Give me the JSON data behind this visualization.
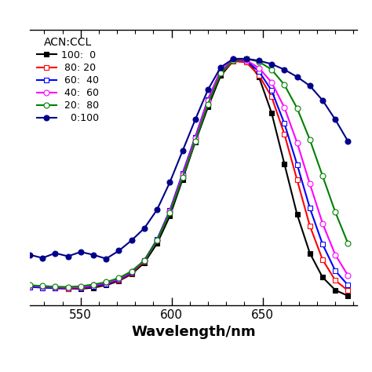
{
  "xlabel": "Wavelength/nm",
  "legend_title": "ACN:CCL",
  "legend_entries": [
    "100:  0",
    " 80: 20",
    " 60:  40",
    " 40:  60",
    " 20:  80",
    "   0:100"
  ],
  "colors": [
    "#000000",
    "#ff0000",
    "#0000ff",
    "#ff00ff",
    "#008000",
    "#00008b"
  ],
  "xlim": [
    522,
    702
  ],
  "ylim": [
    -0.02,
    1.12
  ],
  "x_ticks": [
    550,
    600,
    650
  ],
  "series": {
    "black_100_0": {
      "x": [
        522,
        529,
        536,
        543,
        550,
        557,
        564,
        571,
        578,
        585,
        592,
        599,
        606,
        613,
        620,
        627,
        634,
        641,
        648,
        655,
        662,
        669,
        676,
        683,
        690,
        697
      ],
      "y": [
        0.058,
        0.055,
        0.05,
        0.048,
        0.047,
        0.052,
        0.062,
        0.08,
        0.108,
        0.155,
        0.235,
        0.348,
        0.5,
        0.655,
        0.8,
        0.93,
        0.992,
        1.0,
        0.925,
        0.775,
        0.565,
        0.355,
        0.195,
        0.095,
        0.042,
        0.018
      ],
      "marker": "s",
      "filled": true
    },
    "red_80_20": {
      "x": [
        522,
        529,
        536,
        543,
        550,
        557,
        564,
        571,
        578,
        585,
        592,
        599,
        606,
        613,
        620,
        627,
        634,
        641,
        648,
        655,
        662,
        669,
        676,
        683,
        690,
        697
      ],
      "y": [
        0.058,
        0.054,
        0.05,
        0.048,
        0.05,
        0.056,
        0.066,
        0.083,
        0.112,
        0.162,
        0.248,
        0.368,
        0.518,
        0.668,
        0.818,
        0.94,
        0.99,
        0.985,
        0.932,
        0.842,
        0.688,
        0.498,
        0.308,
        0.168,
        0.082,
        0.04
      ],
      "marker": "s",
      "filled": false
    },
    "blue_60_40": {
      "x": [
        522,
        529,
        536,
        543,
        550,
        557,
        564,
        571,
        578,
        585,
        592,
        599,
        606,
        613,
        620,
        627,
        634,
        641,
        648,
        655,
        662,
        669,
        676,
        683,
        690,
        697
      ],
      "y": [
        0.055,
        0.052,
        0.05,
        0.05,
        0.052,
        0.058,
        0.068,
        0.085,
        0.115,
        0.165,
        0.252,
        0.372,
        0.525,
        0.676,
        0.832,
        0.952,
        0.996,
        0.992,
        0.948,
        0.868,
        0.732,
        0.562,
        0.382,
        0.232,
        0.122,
        0.062
      ],
      "marker": "s",
      "filled": false
    },
    "magenta_40_60": {
      "x": [
        522,
        529,
        536,
        543,
        550,
        557,
        564,
        571,
        578,
        585,
        592,
        599,
        606,
        613,
        620,
        627,
        634,
        641,
        648,
        655,
        662,
        669,
        676,
        683,
        690,
        697
      ],
      "y": [
        0.06,
        0.057,
        0.054,
        0.052,
        0.054,
        0.062,
        0.072,
        0.088,
        0.118,
        0.164,
        0.248,
        0.368,
        0.518,
        0.67,
        0.828,
        0.952,
        0.998,
        0.994,
        0.962,
        0.902,
        0.798,
        0.652,
        0.482,
        0.318,
        0.188,
        0.102
      ],
      "marker": "o",
      "filled": false
    },
    "green_20_80": {
      "x": [
        522,
        529,
        536,
        543,
        550,
        557,
        564,
        571,
        578,
        585,
        592,
        599,
        606,
        613,
        620,
        627,
        634,
        641,
        648,
        655,
        662,
        669,
        676,
        683,
        690,
        697
      ],
      "y": [
        0.062,
        0.059,
        0.056,
        0.055,
        0.058,
        0.065,
        0.075,
        0.092,
        0.12,
        0.165,
        0.248,
        0.362,
        0.508,
        0.658,
        0.812,
        0.94,
        0.994,
        1.0,
        0.988,
        0.955,
        0.892,
        0.795,
        0.665,
        0.515,
        0.365,
        0.235
      ],
      "marker": "o",
      "filled": false
    },
    "navy_0_100": {
      "x": [
        522,
        529,
        536,
        543,
        550,
        557,
        564,
        571,
        578,
        585,
        592,
        599,
        606,
        613,
        620,
        627,
        634,
        641,
        648,
        655,
        662,
        669,
        676,
        683,
        690,
        697
      ],
      "y": [
        0.188,
        0.175,
        0.195,
        0.182,
        0.2,
        0.188,
        0.172,
        0.205,
        0.248,
        0.298,
        0.375,
        0.488,
        0.618,
        0.748,
        0.872,
        0.965,
        1.0,
        1.0,
        0.992,
        0.978,
        0.955,
        0.925,
        0.888,
        0.828,
        0.748,
        0.658
      ],
      "marker": "o",
      "filled": true
    }
  },
  "background_color": "#ffffff",
  "marker_size": 5,
  "linewidth": 1.5,
  "figure_size": [
    4.74,
    4.74
  ],
  "dpi": 100
}
